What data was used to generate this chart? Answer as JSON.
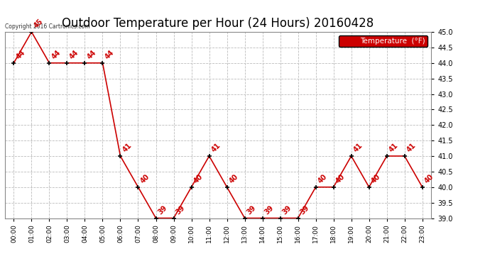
{
  "title": "Outdoor Temperature per Hour (24 Hours) 20160428",
  "hours": [
    "00:00",
    "01:00",
    "02:00",
    "03:00",
    "04:00",
    "05:00",
    "06:00",
    "07:00",
    "08:00",
    "09:00",
    "10:00",
    "11:00",
    "12:00",
    "13:00",
    "14:00",
    "15:00",
    "16:00",
    "17:00",
    "18:00",
    "19:00",
    "20:00",
    "21:00",
    "22:00",
    "23:00"
  ],
  "temps": [
    44,
    45,
    44,
    44,
    44,
    44,
    41,
    40,
    39,
    39,
    40,
    41,
    40,
    39,
    39,
    39,
    39,
    40,
    40,
    41,
    40,
    41,
    41,
    40
  ],
  "line_color": "#cc0000",
  "marker_color": "#000000",
  "legend_label": "Temperature  (°F)",
  "legend_bg": "#cc0000",
  "legend_text_color": "#ffffff",
  "copyright_text": "Copyright 2016 Cartronics.com",
  "ylim_min": 39.0,
  "ylim_max": 45.0,
  "ytick_step": 0.5,
  "bg_color": "#ffffff",
  "grid_color": "#bbbbbb",
  "title_fontsize": 12,
  "label_fontsize": 6.5,
  "annotation_fontsize": 7
}
